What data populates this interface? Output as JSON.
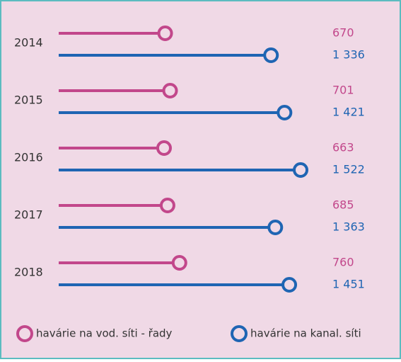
{
  "chart_data": {
    "type": "lollipop",
    "categories": [
      "2014",
      "2015",
      "2016",
      "2017",
      "2018"
    ],
    "series": [
      {
        "name": "havárie na vod. síti - řady",
        "color": "#c2478b",
        "values": [
          670,
          701,
          663,
          685,
          760
        ]
      },
      {
        "name": "havárie na kanal. síti",
        "color": "#1f65b3",
        "values": [
          1336,
          1421,
          1522,
          1363,
          1451
        ],
        "value_labels": [
          "1 336",
          "1 421",
          "1 522",
          "1 363",
          "1 451"
        ]
      }
    ],
    "legend": "bottom"
  }
}
